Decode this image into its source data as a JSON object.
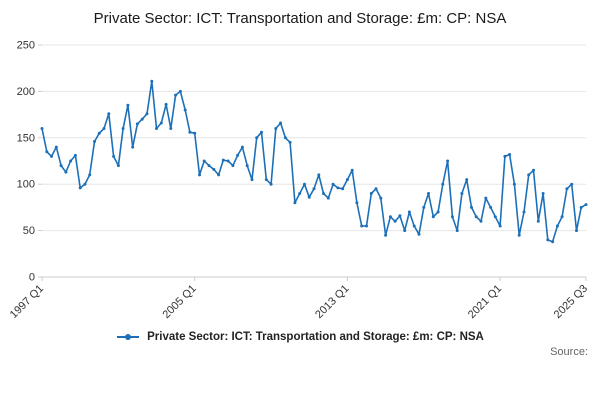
{
  "title": "Private Sector: ICT: Transportation and Storage: £m: CP: NSA",
  "legend": {
    "label": "Private Sector: ICT: Transportation and Storage: £m: CP: NSA"
  },
  "source": "Source:",
  "colors": {
    "line": "#1d70b8",
    "grid": "#e6e6e6",
    "axis": "#cccccc",
    "text": "#333333"
  },
  "chart_data": {
    "type": "line",
    "title": "Private Sector: ICT: Transportation and Storage: £m: CP: NSA",
    "xlabel": "",
    "ylabel": "",
    "ylim": [
      0,
      250
    ],
    "y_ticks": [
      0,
      50,
      100,
      150,
      200,
      250
    ],
    "x_tick_labels": [
      "1997 Q1",
      "2005 Q1",
      "2013 Q1",
      "2021 Q1",
      "2025 Q3"
    ],
    "grid": "horizontal",
    "legend_position": "bottom",
    "categories": [
      "1997 Q1",
      "1997 Q2",
      "1997 Q3",
      "1997 Q4",
      "1998 Q1",
      "1998 Q2",
      "1998 Q3",
      "1998 Q4",
      "1999 Q1",
      "1999 Q2",
      "1999 Q3",
      "1999 Q4",
      "2000 Q1",
      "2000 Q2",
      "2000 Q3",
      "2000 Q4",
      "2001 Q1",
      "2001 Q2",
      "2001 Q3",
      "2001 Q4",
      "2002 Q1",
      "2002 Q2",
      "2002 Q3",
      "2002 Q4",
      "2003 Q1",
      "2003 Q2",
      "2003 Q3",
      "2003 Q4",
      "2004 Q1",
      "2004 Q2",
      "2004 Q3",
      "2004 Q4",
      "2005 Q1",
      "2005 Q2",
      "2005 Q3",
      "2005 Q4",
      "2006 Q1",
      "2006 Q2",
      "2006 Q3",
      "2006 Q4",
      "2007 Q1",
      "2007 Q2",
      "2007 Q3",
      "2007 Q4",
      "2008 Q1",
      "2008 Q2",
      "2008 Q3",
      "2008 Q4",
      "2009 Q1",
      "2009 Q2",
      "2009 Q3",
      "2009 Q4",
      "2010 Q1",
      "2010 Q2",
      "2010 Q3",
      "2010 Q4",
      "2011 Q1",
      "2011 Q2",
      "2011 Q3",
      "2011 Q4",
      "2012 Q1",
      "2012 Q2",
      "2012 Q3",
      "2012 Q4",
      "2013 Q1",
      "2013 Q2",
      "2013 Q3",
      "2013 Q4",
      "2014 Q1",
      "2014 Q2",
      "2014 Q3",
      "2014 Q4",
      "2015 Q1",
      "2015 Q2",
      "2015 Q3",
      "2015 Q4",
      "2016 Q1",
      "2016 Q2",
      "2016 Q3",
      "2016 Q4",
      "2017 Q1",
      "2017 Q2",
      "2017 Q3",
      "2017 Q4",
      "2018 Q1",
      "2018 Q2",
      "2018 Q3",
      "2018 Q4",
      "2019 Q1",
      "2019 Q2",
      "2019 Q3",
      "2019 Q4",
      "2020 Q1",
      "2020 Q2",
      "2020 Q3",
      "2020 Q4",
      "2021 Q1",
      "2021 Q2",
      "2021 Q3",
      "2021 Q4",
      "2022 Q1",
      "2022 Q2",
      "2022 Q3",
      "2022 Q4",
      "2023 Q1",
      "2023 Q2",
      "2023 Q3",
      "2023 Q4",
      "2024 Q1",
      "2024 Q2",
      "2024 Q3",
      "2024 Q4",
      "2025 Q1",
      "2025 Q2",
      "2025 Q3"
    ],
    "values": [
      160,
      135,
      130,
      140,
      120,
      113,
      125,
      131,
      96,
      100,
      110,
      146,
      155,
      160,
      176,
      130,
      120,
      160,
      185,
      140,
      165,
      170,
      176,
      211,
      160,
      166,
      186,
      160,
      196,
      200,
      180,
      156,
      155,
      110,
      125,
      120,
      116,
      110,
      126,
      125,
      120,
      131,
      140,
      120,
      105,
      150,
      156,
      105,
      100,
      160,
      166,
      150,
      145,
      80,
      90,
      100,
      86,
      95,
      110,
      90,
      85,
      100,
      96,
      95,
      105,
      115,
      80,
      55,
      55,
      90,
      95,
      85,
      45,
      65,
      60,
      66,
      50,
      70,
      55,
      46,
      75,
      90,
      65,
      70,
      100,
      125,
      65,
      50,
      90,
      105,
      75,
      65,
      60,
      85,
      75,
      65,
      55,
      130,
      132,
      100,
      45,
      70,
      110,
      115,
      60,
      90,
      40,
      38,
      55,
      65,
      95,
      100,
      50,
      75,
      78
    ]
  }
}
